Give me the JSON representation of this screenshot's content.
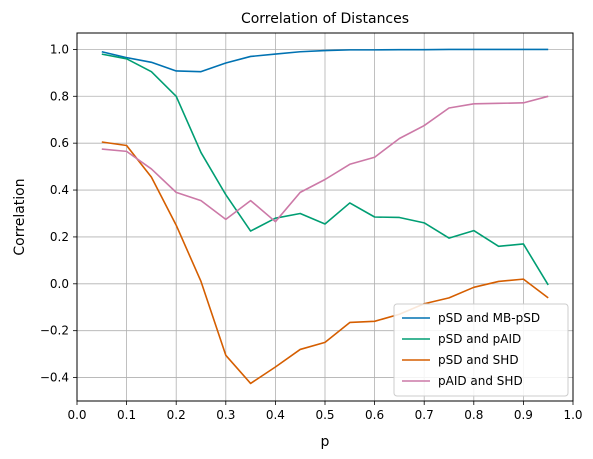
{
  "chart_data": {
    "type": "line",
    "title": "Correlation of Distances",
    "xlabel": "p",
    "ylabel": "Correlation",
    "xlim": [
      0.0,
      1.0
    ],
    "ylim": [
      -0.5,
      1.07
    ],
    "xticks": [
      "0.0",
      "0.1",
      "0.2",
      "0.3",
      "0.4",
      "0.5",
      "0.6",
      "0.7",
      "0.8",
      "0.9",
      "1.0"
    ],
    "yticks": [
      "−0.4",
      "−0.2",
      "0.0",
      "0.2",
      "0.4",
      "0.6",
      "0.8",
      "1.0"
    ],
    "ytick_values": [
      -0.4,
      -0.2,
      0.0,
      0.2,
      0.4,
      0.6,
      0.8,
      1.0
    ],
    "grid": true,
    "legend_position": "lower-right",
    "x": [
      0.05,
      0.1,
      0.15,
      0.2,
      0.25,
      0.3,
      0.35,
      0.4,
      0.45,
      0.5,
      0.55,
      0.6,
      0.65,
      0.7,
      0.75,
      0.8,
      0.85,
      0.9,
      0.95
    ],
    "series": [
      {
        "name": "pSD and MB-pSD",
        "color": "#0072b2",
        "values": [
          0.99,
          0.965,
          0.945,
          0.908,
          0.905,
          0.942,
          0.97,
          0.98,
          0.99,
          0.995,
          0.998,
          0.998,
          0.999,
          0.999,
          1.0,
          1.0,
          1.0,
          1.0,
          1.0
        ]
      },
      {
        "name": "pSD and pAID",
        "color": "#009e73",
        "values": [
          0.98,
          0.96,
          0.905,
          0.8,
          0.56,
          0.38,
          0.225,
          0.28,
          0.3,
          0.255,
          0.345,
          0.285,
          0.283,
          0.26,
          0.195,
          0.227,
          0.16,
          0.17,
          -0.005
        ]
      },
      {
        "name": "pSD and SHD",
        "color": "#d55e00",
        "values": [
          0.605,
          0.59,
          0.455,
          0.25,
          0.01,
          -0.305,
          -0.425,
          -0.355,
          -0.28,
          -0.25,
          -0.165,
          -0.16,
          -0.13,
          -0.085,
          -0.06,
          -0.015,
          0.01,
          0.02,
          -0.06
        ]
      },
      {
        "name": "pAID and SHD",
        "color": "#cc79a7",
        "values": [
          0.575,
          0.565,
          0.49,
          0.39,
          0.355,
          0.275,
          0.355,
          0.265,
          0.39,
          0.445,
          0.51,
          0.54,
          0.62,
          0.675,
          0.75,
          0.768,
          0.77,
          0.772,
          0.8
        ]
      }
    ]
  }
}
